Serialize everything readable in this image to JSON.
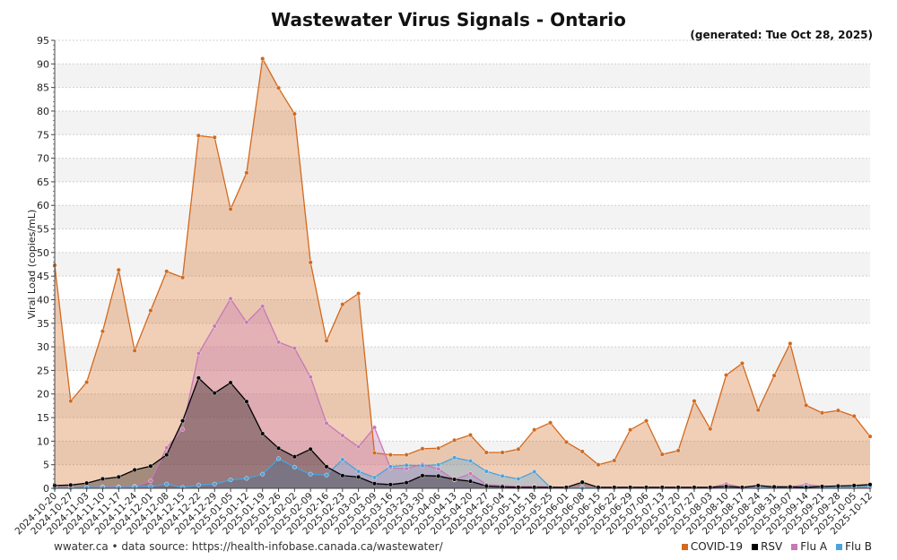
{
  "title": "Wastewater Virus Signals - Ontario",
  "generated": "(generated: Tue Oct 28, 2025)",
  "footer": "wwater.ca • data source: https://health-infobase.canada.ca/wastewater/",
  "legend": [
    {
      "label": "COVID-19",
      "color": "#d2691e"
    },
    {
      "label": "RSV",
      "color": "#000000"
    },
    {
      "label": "Flu A",
      "color": "#c878b4"
    },
    {
      "label": "Flu B",
      "color": "#4aa3df"
    }
  ],
  "chart_data": {
    "type": "area",
    "title": "Wastewater Virus Signals - Ontario",
    "xlabel": "",
    "ylabel": "Viral Load (copies/mL)",
    "ylim": [
      0,
      95
    ],
    "yticks": [
      0,
      5,
      10,
      15,
      20,
      25,
      30,
      35,
      40,
      45,
      50,
      55,
      60,
      65,
      70,
      75,
      80,
      85,
      90,
      95
    ],
    "grid": true,
    "legend_position": "bottom-right",
    "categories": [
      "2024-10-20",
      "2024-10-27",
      "2024-11-03",
      "2024-11-10",
      "2024-11-17",
      "2024-11-24",
      "2024-12-01",
      "2024-12-08",
      "2024-12-15",
      "2024-12-22",
      "2024-12-29",
      "2025-01-05",
      "2025-01-12",
      "2025-01-19",
      "2025-01-26",
      "2025-02-02",
      "2025-02-09",
      "2025-02-16",
      "2025-02-23",
      "2025-03-02",
      "2025-03-09",
      "2025-03-16",
      "2025-03-23",
      "2025-03-30",
      "2025-04-06",
      "2025-04-13",
      "2025-04-20",
      "2025-04-27",
      "2025-05-04",
      "2025-05-11",
      "2025-05-18",
      "2025-05-25",
      "2025-06-01",
      "2025-06-08",
      "2025-06-15",
      "2025-06-22",
      "2025-06-29",
      "2025-07-06",
      "2025-07-13",
      "2025-07-20",
      "2025-07-27",
      "2025-08-03",
      "2025-08-10",
      "2025-08-17",
      "2025-08-24",
      "2025-08-31",
      "2025-09-07",
      "2025-09-14",
      "2025-09-21",
      "2025-09-28",
      "2025-10-05",
      "2025-10-12"
    ],
    "series": [
      {
        "name": "COVID-19",
        "color": "#d2691e",
        "values": [
          47.3,
          18.5,
          22.5,
          33.3,
          46.3,
          29.2,
          37.7,
          46.0,
          44.7,
          74.8,
          74.4,
          59.2,
          66.9,
          91.1,
          84.9,
          79.4,
          47.9,
          31.3,
          39.0,
          41.3,
          7.5,
          7.1,
          7.1,
          8.4,
          8.5,
          10.2,
          11.3,
          7.6,
          7.6,
          8.3,
          12.4,
          13.9,
          9.8,
          7.8,
          5.0,
          5.9,
          12.4,
          14.3,
          7.2,
          8.0,
          18.5,
          12.6,
          24.0,
          26.5,
          16.6,
          23.9,
          30.7,
          17.6,
          16.0,
          16.5,
          15.3,
          11.0
        ]
      },
      {
        "name": "Flu A",
        "color": "#c878b4",
        "values": [
          0.2,
          0.2,
          0.2,
          0.3,
          0.3,
          0.4,
          1.6,
          8.6,
          12.5,
          28.6,
          34.4,
          40.2,
          35.2,
          38.6,
          31.0,
          29.7,
          23.6,
          13.8,
          11.2,
          8.8,
          12.9,
          4.3,
          4.2,
          5.1,
          4.1,
          1.8,
          3.1,
          0.8,
          0.6,
          0.4,
          0.4,
          0.3,
          0.2,
          0.2,
          0.2,
          0.2,
          0.2,
          0.2,
          0.2,
          0.2,
          0.2,
          0.2,
          0.9,
          0.2,
          0.2,
          0.4,
          0.3,
          0.8,
          0.4,
          0.2,
          0.2,
          0.2
        ]
      },
      {
        "name": "Flu B",
        "color": "#4aa3df",
        "values": [
          0.1,
          0.1,
          0.2,
          0.2,
          0.2,
          0.3,
          0.4,
          0.9,
          0.2,
          0.7,
          0.9,
          1.8,
          2.1,
          3.0,
          6.3,
          4.5,
          3.0,
          2.8,
          6.1,
          3.6,
          2.3,
          4.6,
          4.9,
          4.8,
          5.0,
          6.5,
          5.8,
          3.6,
          2.6,
          2.0,
          3.5,
          0.2,
          0.1,
          0.1,
          0.1,
          0.1,
          0.1,
          0.1,
          0.1,
          0.1,
          0.1,
          0.1,
          0.4,
          0.1,
          0.1,
          0.4,
          0.2,
          0.4,
          0.2,
          0.2,
          0.2,
          0.4
        ]
      },
      {
        "name": "RSV",
        "color": "#000000",
        "values": [
          0.6,
          0.7,
          1.1,
          2.0,
          2.4,
          3.9,
          4.7,
          7.1,
          14.3,
          23.4,
          20.2,
          22.4,
          18.4,
          11.6,
          8.5,
          6.7,
          8.3,
          4.6,
          2.7,
          2.4,
          1.0,
          0.8,
          1.2,
          2.7,
          2.6,
          1.9,
          1.5,
          0.5,
          0.3,
          0.2,
          0.2,
          0.2,
          0.2,
          1.3,
          0.2,
          0.2,
          0.2,
          0.2,
          0.2,
          0.2,
          0.2,
          0.2,
          0.4,
          0.2,
          0.6,
          0.3,
          0.3,
          0.2,
          0.4,
          0.5,
          0.6,
          0.8
        ]
      }
    ]
  }
}
